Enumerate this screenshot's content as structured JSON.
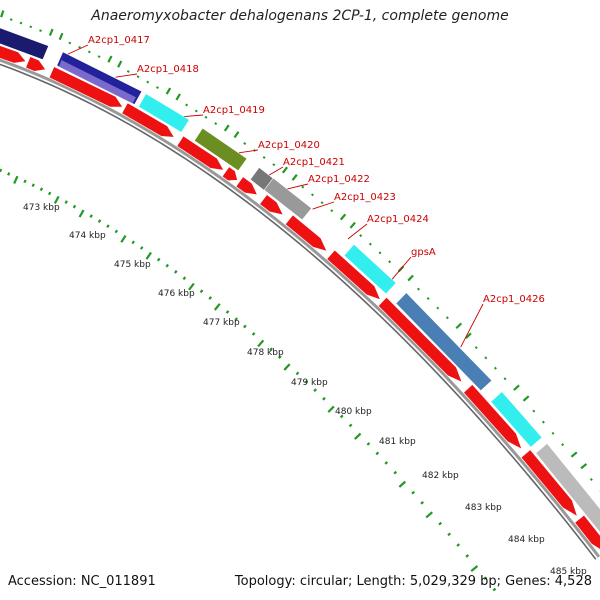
{
  "title": "Anaeromyxobacter dehalogenans 2CP-1, complete genome",
  "footer": {
    "accession": "Accession: NC_011891",
    "summary": "Topology: circular; Length: 5,029,329 bp; Genes: 4,528"
  },
  "colors": {
    "cds": "#ee1111",
    "label": "#cc0000",
    "leader": "#cc0000",
    "backbone": "#999999",
    "gc_dots": "#229922",
    "tick_text": "#222222"
  },
  "genes": [
    {
      "label": "",
      "color": "#1a1a6e"
    },
    {
      "label": "A2cp1_0417",
      "color": "#22229a"
    },
    {
      "label": "A2cp1_0418",
      "color": "#7a6acc"
    },
    {
      "label": "A2cp1_0419",
      "color": "#33eeee"
    },
    {
      "label": "A2cp1_0420",
      "color": "#6b8e23"
    },
    {
      "label": "A2cp1_0421",
      "color": "#777777"
    },
    {
      "label": "A2cp1_0422",
      "color": "#999999"
    },
    {
      "label": "A2cp1_0423",
      "color": "#ee2222"
    },
    {
      "label": "A2cp1_0424",
      "color": "#33eeee"
    },
    {
      "label": "gpsA",
      "color": "#4a7fb5"
    },
    {
      "label": "A2cp1_0426",
      "color": "#33eeee"
    },
    {
      "label": "",
      "color": "#bbbbbb"
    }
  ],
  "kbp_ticks": [
    "473 kbp",
    "474 kbp",
    "475 kbp",
    "476 kbp",
    "477 kbp",
    "478 kbp",
    "479 kbp",
    "480 kbp",
    "481 kbp",
    "482 kbp",
    "483 kbp",
    "484 kbp",
    "485 kbp"
  ]
}
